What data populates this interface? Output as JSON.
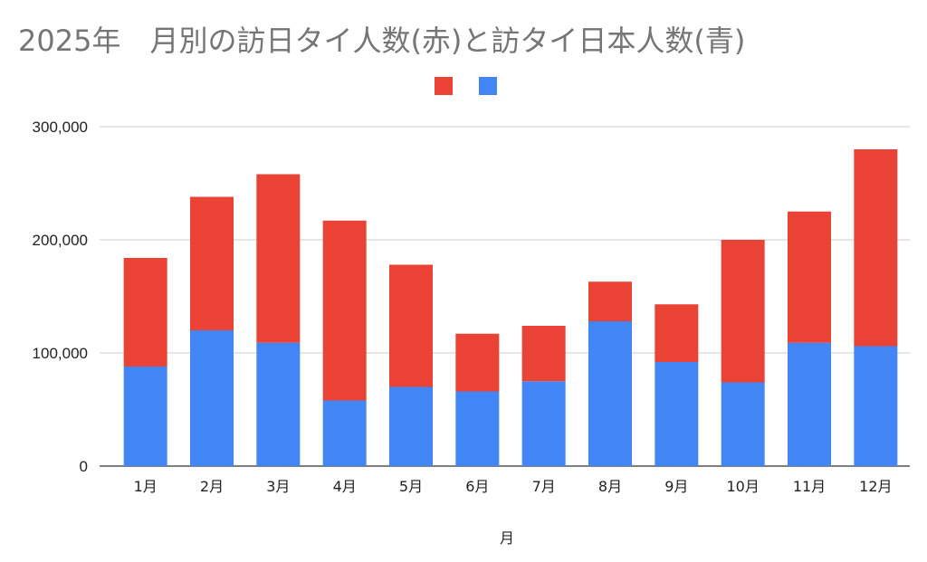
{
  "chart_data": {
    "type": "bar",
    "stacked": true,
    "title": "2025年　月別の訪日タイ人数(赤)と訪タイ日本人数(青)",
    "xlabel": "月",
    "ylabel": "",
    "categories": [
      "1月",
      "2月",
      "3月",
      "4月",
      "5月",
      "6月",
      "7月",
      "8月",
      "9月",
      "10月",
      "11月",
      "12月"
    ],
    "series": [
      {
        "color": "#4285F4",
        "values": [
          88000,
          120000,
          109000,
          58000,
          70000,
          66000,
          75000,
          128000,
          92000,
          74000,
          109000,
          106000
        ]
      },
      {
        "color": "#EA4335",
        "values": [
          96000,
          118000,
          149000,
          159000,
          108000,
          51000,
          49000,
          35000,
          51000,
          126000,
          116000,
          174000
        ]
      }
    ],
    "ylim": [
      0,
      300000
    ],
    "yticks": [
      0,
      100000,
      200000,
      300000
    ],
    "ytick_labels": [
      "0",
      "100,000",
      "200,000",
      "300,000"
    ],
    "grid": true,
    "legend": "top-center"
  }
}
